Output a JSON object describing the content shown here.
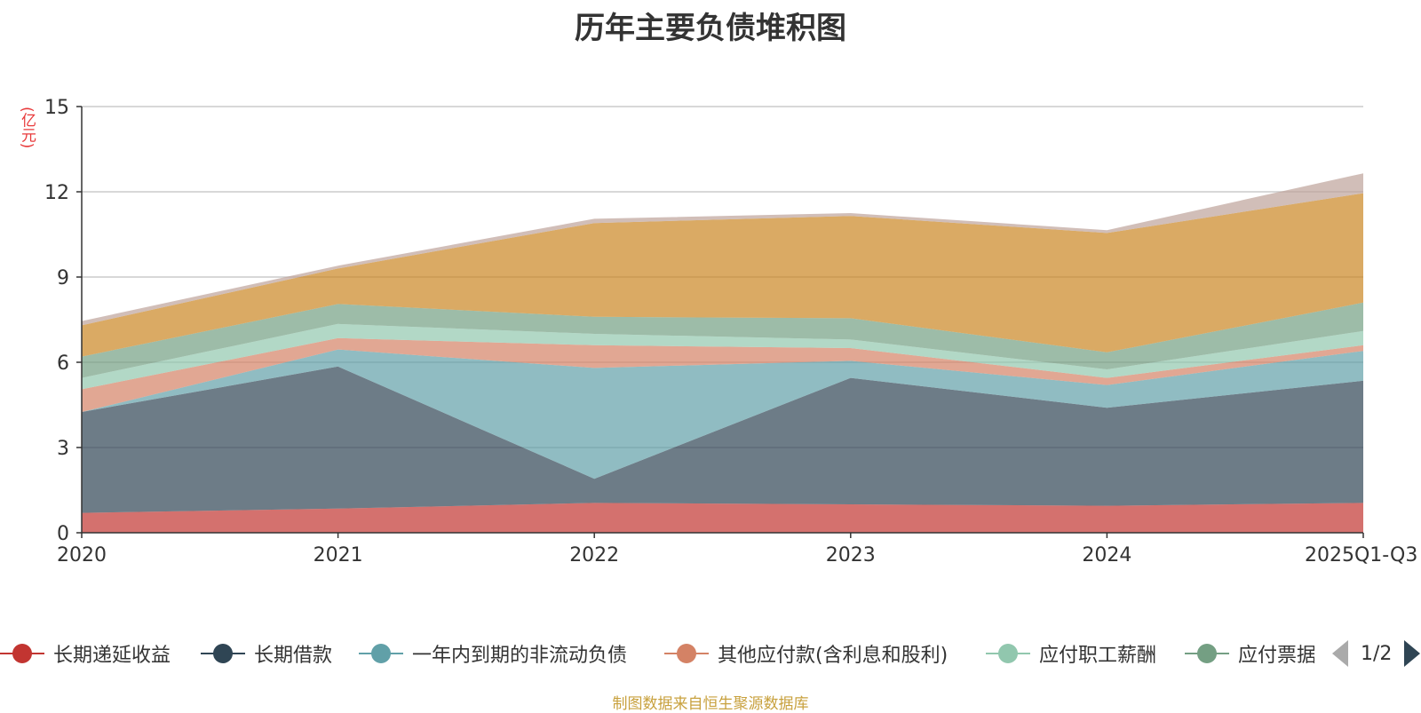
{
  "title": "历年主要负债堆积图",
  "unit_label": "(亿元)",
  "source_note": "制图数据来自恒生聚源数据库",
  "legend_pager": {
    "text": "1/2"
  },
  "chart_data": {
    "type": "area",
    "stacked": true,
    "title": "历年主要负债堆积图",
    "ylabel": "(亿元)",
    "x": [
      "2020",
      "2021",
      "2022",
      "2023",
      "2024",
      "2025Q1-Q3"
    ],
    "y_ticks": [
      "0",
      "3",
      "6",
      "9",
      "12",
      "15"
    ],
    "ylim": [
      0,
      15
    ],
    "grid": true,
    "legend_position": "bottom",
    "series": [
      {
        "name": "长期递延收益",
        "color": "#c23531",
        "legend": true,
        "values": [
          0.7,
          0.85,
          1.05,
          1.0,
          0.95,
          1.05
        ]
      },
      {
        "name": "长期借款",
        "color": "#2f4554",
        "legend": true,
        "values": [
          3.55,
          5.0,
          0.85,
          4.45,
          3.45,
          4.3
        ]
      },
      {
        "name": "一年内到期的非流动负债",
        "color": "#61a0a8",
        "legend": true,
        "values": [
          0.0,
          0.6,
          3.9,
          0.6,
          0.8,
          1.05
        ]
      },
      {
        "name": "其他应付款(含利息和股利)",
        "color": "#d48265",
        "legend": true,
        "values": [
          0.8,
          0.4,
          0.8,
          0.45,
          0.25,
          0.2
        ]
      },
      {
        "name": "应付职工薪酬",
        "color": "#91c7ae",
        "legend": true,
        "values": [
          0.4,
          0.5,
          0.4,
          0.3,
          0.3,
          0.5
        ]
      },
      {
        "name": "应付票据",
        "color": "#749f83",
        "legend": true,
        "values": [
          0.75,
          0.7,
          0.6,
          0.75,
          0.6,
          1.0
        ]
      },
      {
        "name": "",
        "color": "#ca8622",
        "legend": false,
        "values": [
          1.1,
          1.25,
          3.3,
          3.6,
          4.2,
          3.85
        ]
      },
      {
        "name": "",
        "color": "#bda29a",
        "legend": false,
        "values": [
          0.15,
          0.1,
          0.15,
          0.1,
          0.1,
          0.7
        ]
      }
    ]
  }
}
